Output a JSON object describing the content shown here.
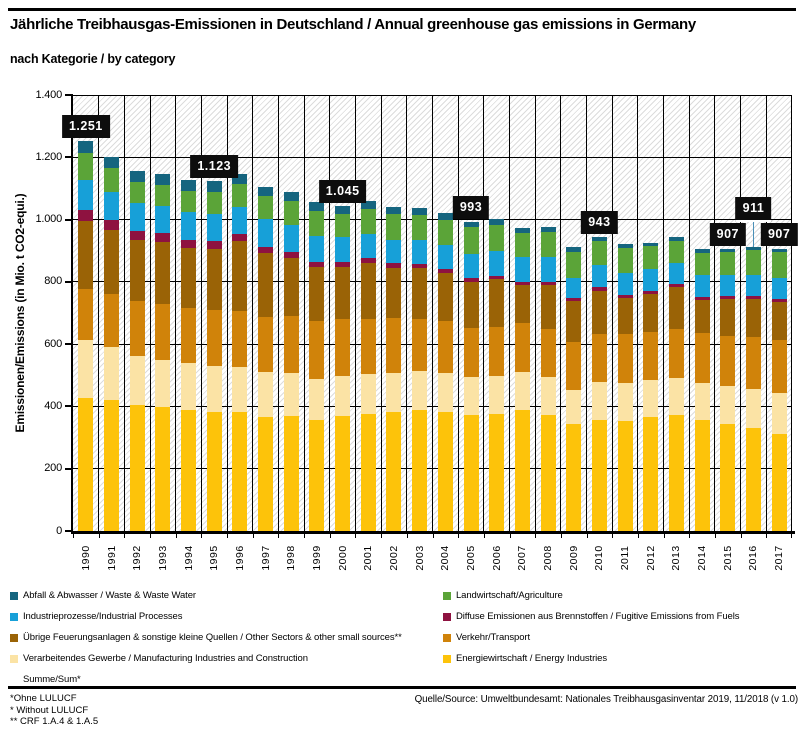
{
  "page": {
    "title": "Jährliche Treibhausgas-Emissionen in Deutschland / Annual greenhouse gas emissions in Germany",
    "subtitle": "nach Kategorie / by category",
    "footnotes": [
      "*Ohne LULUCF",
      "* Without LULUCF",
      "** CRF 1.A.4 & 1.A.5"
    ],
    "source": "Quelle/Source: Umweltbundesamt: Nationales Treibhausgasinventar 2019, 11/2018 (v 1.0)"
  },
  "chart_data": {
    "type": "bar",
    "stacked": true,
    "title": "Jährliche Treibhausgas-Emissionen in Deutschland / Annual greenhouse gas emissions in Germany",
    "subtitle": "nach Kategorie / by category",
    "ylabel": "Emissionen/Emissions (in Mio. t CO2-equi.)",
    "xlabel": "",
    "ylim": [
      0,
      1400
    ],
    "ytick_step": 200,
    "ytick_labels": [
      "0",
      "200",
      "400",
      "600",
      "800",
      "1.000",
      "1.200",
      "1.400"
    ],
    "grid": "horizontal and vertical black gridlines on hatched background",
    "legend_position": "bottom",
    "categories": [
      "1990",
      "1991",
      "1992",
      "1993",
      "1994",
      "1995",
      "1996",
      "1997",
      "1998",
      "1999",
      "2000",
      "2001",
      "2002",
      "2003",
      "2004",
      "2005",
      "2006",
      "2007",
      "2008",
      "2009",
      "2010",
      "2011",
      "2012",
      "2013",
      "2014",
      "2015",
      "2016",
      "2017"
    ],
    "series": [
      {
        "key": "energy",
        "name": "Energiewirtschaft / Energy Industries",
        "color": "#fdc30a",
        "values": [
          427,
          421,
          403,
          397,
          389,
          383,
          383,
          366,
          369,
          355,
          368,
          376,
          383,
          389,
          382,
          374,
          375,
          387,
          372,
          344,
          357,
          354,
          366,
          371,
          355,
          343,
          332,
          313
        ]
      },
      {
        "key": "manufacturing",
        "name": "Verarbeitendes Gewerbe / Manufacturing Industries and Construction",
        "color": "#fbe3a5",
        "values": [
          186,
          171,
          160,
          153,
          152,
          148,
          144,
          144,
          139,
          132,
          131,
          128,
          124,
          124,
          124,
          119,
          123,
          125,
          124,
          109,
          120,
          122,
          119,
          121,
          121,
          121,
          124,
          131
        ]
      },
      {
        "key": "transport",
        "name": "Verkehr/Transport",
        "color": "#d0830a",
        "values": [
          163,
          168,
          174,
          178,
          176,
          179,
          178,
          178,
          181,
          186,
          182,
          178,
          176,
          169,
          167,
          160,
          158,
          155,
          154,
          153,
          154,
          155,
          155,
          158,
          160,
          163,
          166,
          168
        ]
      },
      {
        "key": "other-sectors",
        "name": "Übrige Feuerungsanlagen & sonstige kleine Quellen / Other Sectors & other small sources**",
        "color": "#9a6306",
        "values": [
          219,
          205,
          196,
          200,
          192,
          196,
          226,
          204,
          189,
          174,
          167,
          180,
          163,
          161,
          154,
          148,
          152,
          122,
          140,
          132,
          141,
          117,
          122,
          133,
          107,
          117,
          123,
          123
        ]
      },
      {
        "key": "fugitive",
        "name": "Diffuse Emissionen aus Brennstoffen / Fugitive Emissions from Fuels",
        "color": "#8e1240",
        "values": [
          36,
          33,
          30,
          28,
          26,
          24,
          22,
          21,
          19,
          17,
          16,
          15,
          14,
          14,
          13,
          12,
          12,
          11,
          11,
          10,
          10,
          10,
          10,
          10,
          9,
          9,
          9,
          9
        ]
      },
      {
        "key": "industrial-processes",
        "name": "Industrieprozesse/Industrial Processes",
        "color": "#17a0d8",
        "values": [
          95,
          92,
          90,
          88,
          90,
          89,
          88,
          90,
          86,
          84,
          81,
          77,
          75,
          76,
          78,
          77,
          78,
          81,
          78,
          65,
          71,
          71,
          70,
          69,
          69,
          68,
          68,
          69
        ]
      },
      {
        "key": "agriculture",
        "name": "Landwirtschaft/Agriculture",
        "color": "#5ba438",
        "values": [
          87,
          75,
          67,
          66,
          67,
          71,
          74,
          72,
          76,
          79,
          74,
          80,
          82,
          82,
          82,
          85,
          86,
          75,
          82,
          84,
          77,
          80,
          72,
          70,
          72,
          75,
          79,
          84
        ]
      },
      {
        "key": "waste",
        "name": "Abfall & Abwasser / Waste & Waste Water",
        "color": "#15657f",
        "values": [
          38,
          36,
          35,
          35,
          34,
          33,
          32,
          31,
          30,
          28,
          26,
          25,
          23,
          21,
          20,
          18,
          17,
          16,
          15,
          14,
          13,
          12,
          12,
          12,
          11,
          11,
          10,
          10
        ]
      }
    ],
    "totals_labels": [
      {
        "category": "1990",
        "text": "1.251",
        "value": 1251
      },
      {
        "category": "1995",
        "text": "1.123",
        "value": 1123
      },
      {
        "category": "2000",
        "text": "1.045",
        "value": 1045
      },
      {
        "category": "2005",
        "text": "993",
        "value": 993
      },
      {
        "category": "2010",
        "text": "943",
        "value": 943
      },
      {
        "category": "2015",
        "text": "907",
        "value": 907
      },
      {
        "category": "2016",
        "text": "911",
        "value": 911,
        "raised": true
      },
      {
        "category": "2017",
        "text": "907",
        "value": 907
      }
    ],
    "legend": {
      "left": [
        {
          "key": "waste",
          "label": "Abfall & Abwasser / Waste & Waste Water",
          "color": "#15657f"
        },
        {
          "key": "industrial-processes",
          "label": "Industrieprozesse/Industrial Processes",
          "color": "#17a0d8"
        },
        {
          "key": "other-sectors",
          "label": "Übrige Feuerungsanlagen & sonstige kleine Quellen / Other Sectors & other small sources**",
          "color": "#9a6306"
        },
        {
          "key": "manufacturing",
          "label": "Verarbeitendes Gewerbe / Manufacturing Industries and Construction",
          "color": "#fbe3a5"
        },
        {
          "key": "sum",
          "label": "Summe/Sum*",
          "color": null
        }
      ],
      "right": [
        {
          "key": "agriculture",
          "label": "Landwirtschaft/Agriculture",
          "color": "#5ba438"
        },
        {
          "key": "fugitive",
          "label": "Diffuse Emissionen aus Brennstoffen / Fugitive Emissions from Fuels",
          "color": "#8e1240"
        },
        {
          "key": "transport",
          "label": "Verkehr/Transport",
          "color": "#d0830a"
        },
        {
          "key": "energy",
          "label": "Energiewirtschaft / Energy Industries",
          "color": "#fdc30a"
        }
      ]
    }
  }
}
